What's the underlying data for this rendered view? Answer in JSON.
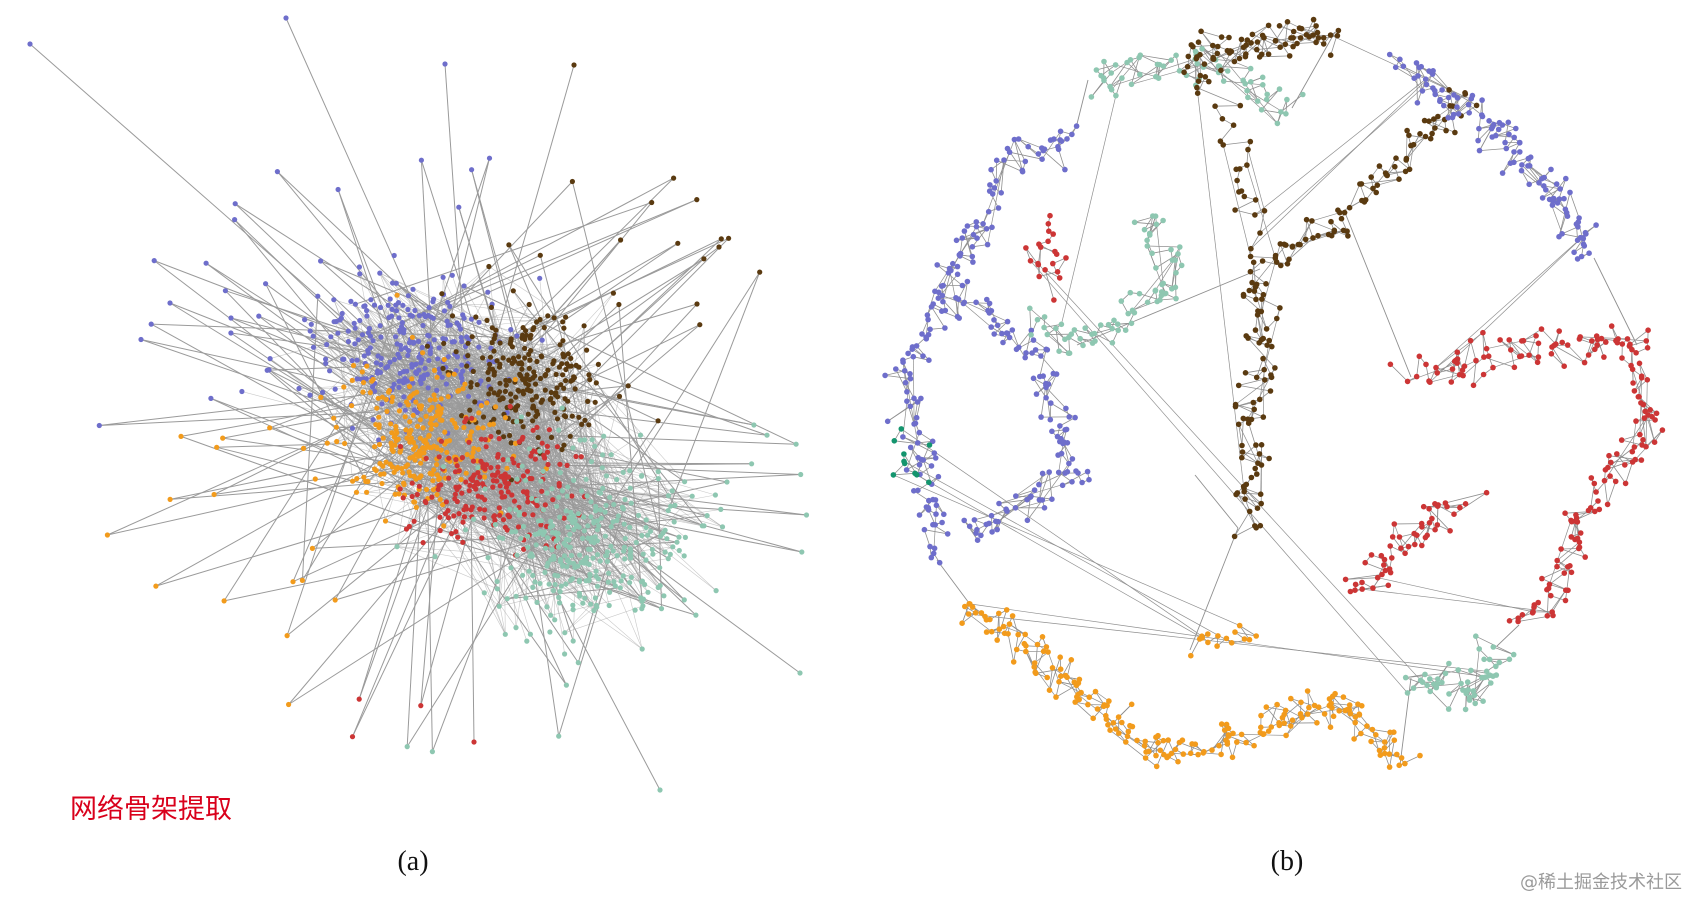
{
  "panels": [
    {
      "label": "(a)",
      "annotation": "网络骨架提取"
    },
    {
      "label": "(b)"
    }
  ],
  "watermark": "@稀土掘金技术社区"
}
